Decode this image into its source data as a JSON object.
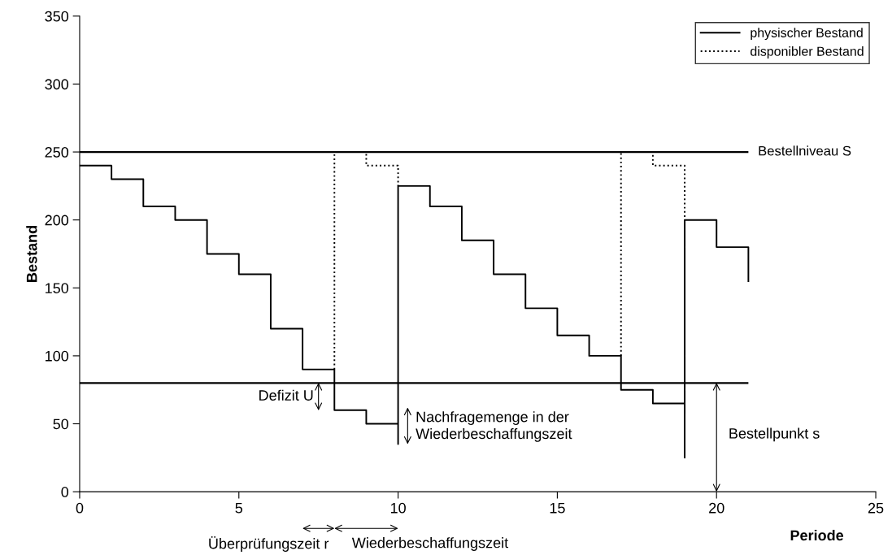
{
  "chart_data": {
    "type": "line",
    "xlabel": "Periode",
    "ylabel": "Bestand",
    "xlim": [
      0,
      25
    ],
    "xticks": [
      0,
      5,
      10,
      15,
      20,
      25
    ],
    "ylim": [
      0,
      350
    ],
    "yticks": [
      0,
      50,
      100,
      150,
      200,
      250,
      300,
      350
    ],
    "grid": false,
    "legend": "top right",
    "marker": "none",
    "series": [
      {
        "name": "physischer Bestand",
        "color": "#000000",
        "line_style": "solid",
        "x": [
          0,
          1,
          1,
          2,
          2,
          3,
          3,
          4,
          4,
          5,
          5,
          6,
          6,
          7,
          7,
          8,
          8,
          9,
          9,
          10,
          10,
          10,
          11,
          11,
          12,
          12,
          13,
          13,
          14,
          14,
          15,
          15,
          16,
          16,
          17,
          17,
          18,
          18,
          19,
          19,
          19,
          20,
          20,
          21,
          21
        ],
        "values": [
          240,
          240,
          230,
          230,
          210,
          210,
          200,
          200,
          175,
          175,
          160,
          160,
          120,
          120,
          90,
          90,
          60,
          60,
          50,
          50,
          35,
          225,
          225,
          210,
          210,
          185,
          185,
          160,
          160,
          135,
          135,
          115,
          115,
          100,
          100,
          75,
          75,
          65,
          65,
          25,
          200,
          200,
          180,
          180,
          155
        ]
      },
      {
        "name": "disponibler Bestand",
        "color": "#000000",
        "line_style": "dotted",
        "x": [
          8,
          8,
          9,
          9,
          10,
          10,
          13,
          17,
          17,
          18,
          18,
          19,
          19
        ],
        "values": [
          90,
          250,
          250,
          240,
          240,
          225,
          null,
          100,
          250,
          250,
          240,
          240,
          200
        ]
      }
    ],
    "ref_lines": [
      {
        "axis": "y",
        "value": 250,
        "label": "Bestellniveau S"
      },
      {
        "axis": "y",
        "value": 80,
        "label": null
      }
    ],
    "annotations": [
      "Defizit U",
      "Nachfragemenge in der\nWiederbeschaffungszeit",
      "Bestellpunkt s",
      "Überprüfungszeit r",
      "Wiederbeschaffungszeit"
    ]
  }
}
